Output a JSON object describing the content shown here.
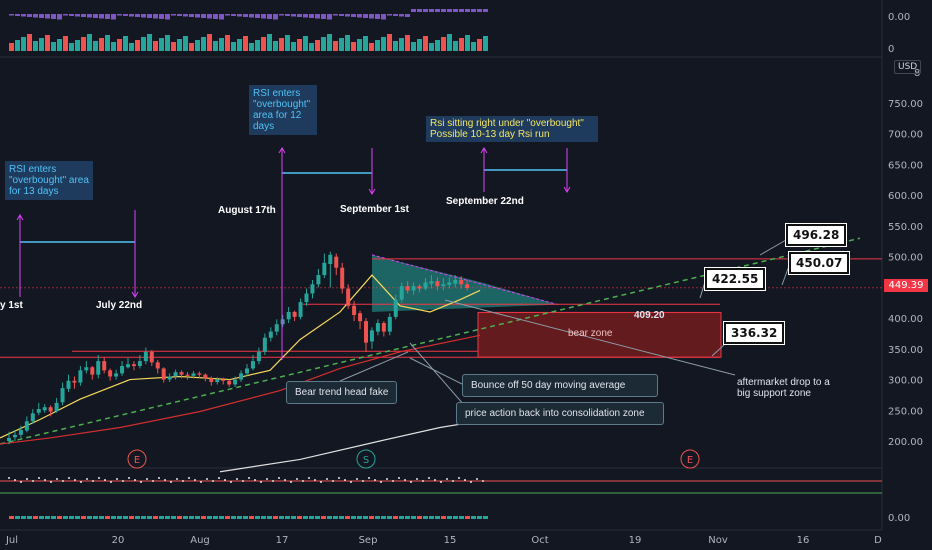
{
  "chart_data": {
    "type": "candlestick",
    "currency": "USD",
    "last_price": "449.39",
    "y_ticks": [
      "750.00",
      "700.00",
      "650.00",
      "600.00",
      "550.00",
      "500.00",
      "450.00",
      "400.00",
      "350.00",
      "300.00",
      "250.00",
      "200.00"
    ],
    "top_y_tick": "8",
    "x_ticks": [
      "Jul",
      "20",
      "Aug",
      "17",
      "Sep",
      "15",
      "Oct",
      "19",
      "Nov",
      "16",
      "D"
    ],
    "ylim": [
      170,
      790
    ],
    "candles": [
      [
        205,
        200,
        215,
        195
      ],
      [
        210,
        206,
        218,
        200
      ],
      [
        218,
        210,
        225,
        205
      ],
      [
        232,
        217,
        240,
        214
      ],
      [
        245,
        232,
        252,
        228
      ],
      [
        252,
        246,
        262,
        242
      ],
      [
        255,
        250,
        260,
        246
      ],
      [
        248,
        255,
        258,
        240
      ],
      [
        262,
        249,
        270,
        246
      ],
      [
        286,
        263,
        295,
        258
      ],
      [
        298,
        285,
        308,
        280
      ],
      [
        295,
        298,
        305,
        285
      ],
      [
        315,
        295,
        322,
        290
      ],
      [
        320,
        315,
        330,
        310
      ],
      [
        308,
        320,
        322,
        300
      ],
      [
        330,
        308,
        340,
        302
      ],
      [
        315,
        330,
        336,
        310
      ],
      [
        305,
        315,
        318,
        298
      ],
      [
        310,
        305,
        316,
        300
      ],
      [
        322,
        310,
        330,
        306
      ],
      [
        325,
        320,
        335,
        318
      ],
      [
        322,
        325,
        330,
        315
      ],
      [
        330,
        322,
        340,
        318
      ],
      [
        345,
        330,
        352,
        325
      ],
      [
        328,
        345,
        348,
        322
      ],
      [
        318,
        328,
        332,
        310
      ],
      [
        300,
        318,
        320,
        295
      ],
      [
        305,
        300,
        310,
        296
      ],
      [
        312,
        305,
        316,
        300
      ],
      [
        308,
        312,
        315,
        302
      ],
      [
        306,
        308,
        312,
        300
      ],
      [
        310,
        306,
        314,
        302
      ],
      [
        308,
        310,
        313,
        302
      ],
      [
        302,
        308,
        310,
        297
      ],
      [
        296,
        302,
        305,
        290
      ],
      [
        300,
        296,
        304,
        292
      ],
      [
        298,
        300,
        303,
        292
      ],
      [
        292,
        298,
        300,
        288
      ],
      [
        300,
        292,
        305,
        288
      ],
      [
        310,
        300,
        315,
        296
      ],
      [
        318,
        310,
        325,
        306
      ],
      [
        330,
        318,
        340,
        315
      ],
      [
        345,
        330,
        352,
        325
      ],
      [
        368,
        345,
        375,
        340
      ],
      [
        378,
        368,
        385,
        362
      ],
      [
        390,
        378,
        398,
        372
      ],
      [
        398,
        390,
        405,
        385
      ],
      [
        410,
        398,
        418,
        392
      ],
      [
        402,
        410,
        412,
        395
      ],
      [
        426,
        402,
        432,
        398
      ],
      [
        440,
        426,
        448,
        420
      ],
      [
        455,
        440,
        462,
        432
      ],
      [
        470,
        455,
        480,
        450
      ],
      [
        490,
        470,
        505,
        465
      ],
      [
        503,
        488,
        508,
        450
      ],
      [
        482,
        500,
        505,
        470
      ],
      [
        448,
        482,
        490,
        440
      ],
      [
        420,
        448,
        455,
        415
      ],
      [
        405,
        420,
        428,
        395
      ],
      [
        395,
        408,
        412,
        382
      ],
      [
        360,
        395,
        400,
        345
      ],
      [
        380,
        362,
        385,
        350
      ],
      [
        392,
        378,
        398,
        372
      ],
      [
        378,
        392,
        395,
        370
      ],
      [
        402,
        378,
        408,
        372
      ],
      [
        430,
        402,
        438,
        398
      ],
      [
        452,
        430,
        458,
        425
      ],
      [
        445,
        452,
        460,
        440
      ],
      [
        452,
        445,
        458,
        438
      ],
      [
        448,
        452,
        455,
        442
      ],
      [
        458,
        448,
        465,
        445
      ],
      [
        460,
        456,
        470,
        448
      ],
      [
        452,
        460,
        466,
        445
      ],
      [
        455,
        452,
        465,
        445
      ],
      [
        458,
        454,
        466,
        448
      ],
      [
        462,
        456,
        470,
        450
      ],
      [
        455,
        462,
        468,
        448
      ],
      [
        449,
        455,
        462,
        445
      ]
    ],
    "annotations": {
      "rsi_note_1": "RSI enters \"overbought\" area for 13 days",
      "rsi_note_2": "RSI enters \"overbought\" area for 12 days",
      "rsi_note_3": "Rsi sitting right under \"overbought\" Possible 10-13 day Rsi run",
      "date_1": "y 1st",
      "date_2": "July 22nd",
      "date_3": "August 17th",
      "date_4": "September 1st",
      "date_5": "September 22nd",
      "callout_1": "Bear trend head fake",
      "callout_2": "Bounce off 50 day moving average",
      "callout_3": "price action back into consolidation zone",
      "zone_label": "bear zone",
      "zone_top_label": "409.20",
      "aftermarket_note": "aftermarket drop to a big support zone",
      "price_tag_1": "496.28",
      "price_tag_2": "450.07",
      "price_tag_3": "422.55",
      "price_tag_4": "336.32"
    },
    "event_markers": [
      {
        "label": "E",
        "date": "Jul 20"
      },
      {
        "label": "S",
        "date": "Aug 31"
      },
      {
        "label": "E",
        "date": "Oct 20"
      }
    ],
    "indicator_ticks": {
      "top_panel_1": "0.00",
      "top_panel_2": "0",
      "bottom_panel": "0.00"
    }
  },
  "colors": {
    "up": "#26a69a",
    "down": "#ef5350",
    "ema_short": "#f5d85a",
    "ema_long": "#d32f2f",
    "sma_200": "#e0e0e0",
    "trendline": "#4caf50",
    "teal_wedge": "#26a69a",
    "rsi_line": "#4fc3f7",
    "pink_arrows": "#e040fb",
    "level_lines": "#f23645"
  }
}
